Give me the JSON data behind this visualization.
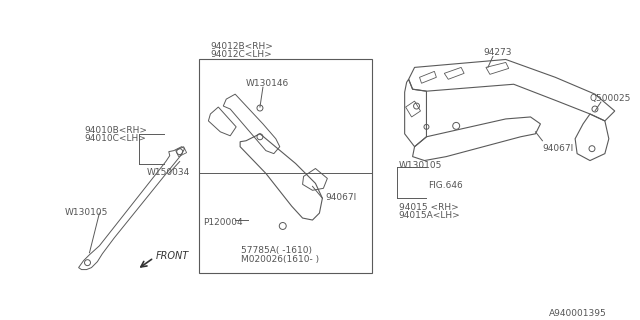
{
  "bg_color": "#ffffff",
  "line_color": "#5a5a5a",
  "text_color": "#555555",
  "diagram_id": "A940001395",
  "labels": {
    "l1": "94010B<RH>",
    "l2": "94010C<LH>",
    "l3": "W150034",
    "l4": "W130105",
    "m1": "94012B<RH>",
    "m2": "94012C<LH>",
    "m3": "W130146",
    "m4": "94067I",
    "m5": "P120004",
    "m6": "57785A( -1610)",
    "m7": "M020026(1610- )",
    "r1": "W130105",
    "r2": "FIG.646",
    "r3": "94015 <RH>",
    "r4": "94015A<LH>",
    "r5": "94067I",
    "r6": "94273",
    "r7": "Q500025",
    "front": "FRONT"
  }
}
